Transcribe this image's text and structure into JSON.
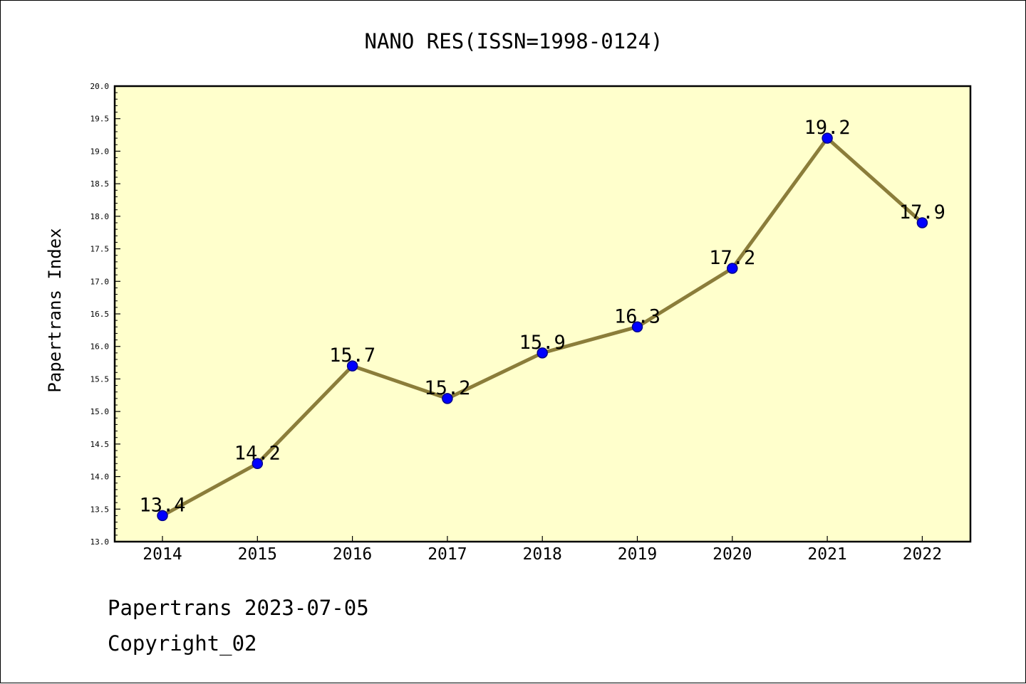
{
  "chart_data": {
    "type": "line",
    "title": "NANO RES(ISSN=1998-0124)",
    "xlabel": "",
    "ylabel": "Papertrans Index",
    "categories": [
      "2014",
      "2015",
      "2016",
      "2017",
      "2018",
      "2019",
      "2020",
      "2021",
      "2022"
    ],
    "values": [
      13.4,
      14.2,
      15.7,
      15.2,
      15.9,
      16.3,
      17.2,
      19.2,
      17.9
    ],
    "data_labels": [
      "13.4",
      "14.2",
      "15.7",
      "15.2",
      "15.9",
      "16.3",
      "17.2",
      "19.2",
      "17.9"
    ],
    "ylim": [
      13.0,
      20.0
    ],
    "yticks": [
      "13.0",
      "13.5",
      "14.0",
      "14.5",
      "15.0",
      "15.5",
      "16.0",
      "16.5",
      "17.0",
      "17.5",
      "18.0",
      "18.5",
      "19.0",
      "19.5",
      "20.0"
    ],
    "grid": false,
    "legend": "none",
    "colors": {
      "plot_background": "#ffffcc",
      "line": "#8b7d3a",
      "marker_fill": "#0000ff",
      "marker_edge": "#00008b"
    }
  },
  "footer": {
    "date_line": "Papertrans 2023-07-05",
    "copyright_line": "Copyright_02"
  }
}
